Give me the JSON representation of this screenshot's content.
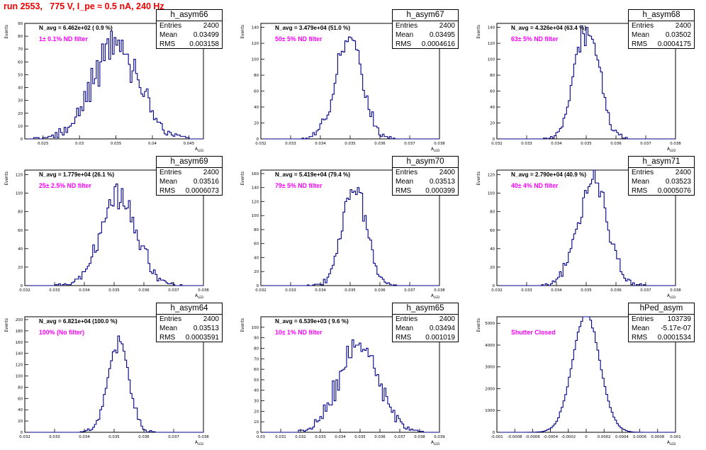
{
  "header": {
    "run_label": "run 2553,   775 V, I_pe ≈ 0.5 nA, 240 Hz"
  },
  "stat_labels": {
    "entries": "Entries",
    "mean": "Mean",
    "rms": "RMS"
  },
  "axis_titles": {
    "x": "A",
    "x_sub": "LED",
    "y": "Events"
  },
  "chart_data": [
    {
      "type": "bar",
      "name": "h_asym66",
      "n_avg_label": "N_avg = 6.462e+02 ( 0.9 %)",
      "filter_label": "1± 0.1% ND filter",
      "stats": {
        "entries": "2400",
        "mean": "0.03499",
        "rms": "0.003158"
      },
      "xlim": [
        0.0225,
        0.047
      ],
      "ylim": [
        0,
        90
      ],
      "xticks": [
        "0.025",
        "0.03",
        "0.035",
        "0.04",
        "0.045"
      ],
      "xtick_values": [
        0.025,
        0.03,
        0.035,
        0.04,
        0.045
      ],
      "yticks": [
        "0",
        "10",
        "20",
        "30",
        "40",
        "50",
        "60",
        "70",
        "80",
        "90"
      ],
      "ytick_values": [
        0,
        10,
        20,
        30,
        40,
        50,
        60,
        70,
        80,
        90
      ],
      "mean": 0.03499,
      "rms": 0.003158,
      "entries": 2400,
      "seed": 66
    },
    {
      "type": "bar",
      "name": "h_asym67",
      "n_avg_label": "N_avg = 3.479e+04 (51.0 %)",
      "filter_label": "50± 5% ND filter",
      "stats": {
        "entries": "2400",
        "mean": "0.03495",
        "rms": "0.0004616"
      },
      "xlim": [
        0.032,
        0.038
      ],
      "ylim": [
        0,
        145
      ],
      "xticks": [
        "0.032",
        "0.033",
        "0.034",
        "0.035",
        "0.036",
        "0.037",
        "0.038"
      ],
      "xtick_values": [
        0.032,
        0.033,
        0.034,
        0.035,
        0.036,
        0.037,
        0.038
      ],
      "yticks": [
        "0",
        "20",
        "40",
        "60",
        "80",
        "100",
        "120",
        "140"
      ],
      "ytick_values": [
        0,
        20,
        40,
        60,
        80,
        100,
        120,
        140
      ],
      "mean": 0.03495,
      "rms": 0.0004616,
      "entries": 2400,
      "seed": 67
    },
    {
      "type": "bar",
      "name": "h_asym68",
      "n_avg_label": "N_avg = 4.326e+04 (63.4 %)",
      "filter_label": "63± 5% ND filter",
      "stats": {
        "entries": "2400",
        "mean": "0.03502",
        "rms": "0.0004175"
      },
      "xlim": [
        0.032,
        0.038
      ],
      "ylim": [
        0,
        145
      ],
      "xticks": [
        "0.032",
        "0.033",
        "0.034",
        "0.035",
        "0.036",
        "0.037",
        "0.038"
      ],
      "xtick_values": [
        0.032,
        0.033,
        0.034,
        0.035,
        0.036,
        0.037,
        0.038
      ],
      "yticks": [
        "0",
        "20",
        "40",
        "60",
        "80",
        "100",
        "120",
        "140"
      ],
      "ytick_values": [
        0,
        20,
        40,
        60,
        80,
        100,
        120,
        140
      ],
      "mean": 0.03502,
      "rms": 0.0004175,
      "entries": 2400,
      "seed": 68
    },
    {
      "type": "bar",
      "name": "h_asym69",
      "n_avg_label": "N_avg = 1.779e+04 (26.1 %)",
      "filter_label": "25± 2.5% ND filter",
      "stats": {
        "entries": "2400",
        "mean": "0.03516",
        "rms": "0.0006073"
      },
      "xlim": [
        0.032,
        0.038
      ],
      "ylim": [
        0,
        125
      ],
      "xticks": [
        "0.032",
        "0.033",
        "0.034",
        "0.035",
        "0.036",
        "0.037",
        "0.038"
      ],
      "xtick_values": [
        0.032,
        0.033,
        0.034,
        0.035,
        0.036,
        0.037,
        0.038
      ],
      "yticks": [
        "0",
        "20",
        "40",
        "60",
        "80",
        "100",
        "120"
      ],
      "ytick_values": [
        0,
        20,
        40,
        60,
        80,
        100,
        120
      ],
      "mean": 0.03516,
      "rms": 0.0006073,
      "entries": 2400,
      "seed": 69
    },
    {
      "type": "bar",
      "name": "h_asym70",
      "n_avg_label": "N_avg = 5.419e+04 (79.4 %)",
      "filter_label": "79± 5% ND filter",
      "stats": {
        "entries": "2400",
        "mean": "0.03513",
        "rms": "0.000399"
      },
      "xlim": [
        0.032,
        0.038
      ],
      "ylim": [
        0,
        165
      ],
      "xticks": [
        "0.032",
        "0.033",
        "0.034",
        "0.035",
        "0.036",
        "0.037",
        "0.038"
      ],
      "xtick_values": [
        0.032,
        0.033,
        0.034,
        0.035,
        0.036,
        0.037,
        0.038
      ],
      "yticks": [
        "0",
        "20",
        "40",
        "60",
        "80",
        "100",
        "120",
        "140",
        "160"
      ],
      "ytick_values": [
        0,
        20,
        40,
        60,
        80,
        100,
        120,
        140,
        160
      ],
      "mean": 0.03513,
      "rms": 0.000399,
      "entries": 2400,
      "seed": 70
    },
    {
      "type": "bar",
      "name": "h_asym71",
      "n_avg_label": "N_avg = 2.790e+04 (40.9 %)",
      "filter_label": "40± 4% ND filter",
      "stats": {
        "entries": "2400",
        "mean": "0.03523",
        "rms": "0.0005076"
      },
      "xlim": [
        0.032,
        0.038
      ],
      "ylim": [
        0,
        125
      ],
      "xticks": [
        "0.032",
        "0.033",
        "0.034",
        "0.035",
        "0.036",
        "0.037",
        "0.038"
      ],
      "xtick_values": [
        0.032,
        0.033,
        0.034,
        0.035,
        0.036,
        0.037,
        0.038
      ],
      "yticks": [
        "0",
        "20",
        "40",
        "60",
        "80",
        "100",
        "120"
      ],
      "ytick_values": [
        0,
        20,
        40,
        60,
        80,
        100,
        120
      ],
      "mean": 0.03523,
      "rms": 0.0005076,
      "entries": 2400,
      "seed": 71
    },
    {
      "type": "bar",
      "name": "h_asym64",
      "n_avg_label": "N_avg = 6.821e+04 (100.0 %)",
      "filter_label": "100% (No filter)",
      "stats": {
        "entries": "2400",
        "mean": "0.03513",
        "rms": "0.0003591"
      },
      "xlim": [
        0.032,
        0.038
      ],
      "ylim": [
        0,
        205
      ],
      "xticks": [
        "0.032",
        "0.033",
        "0.034",
        "0.035",
        "0.036",
        "0.037",
        "0.038"
      ],
      "xtick_values": [
        0.032,
        0.033,
        0.034,
        0.035,
        0.036,
        0.037,
        0.038
      ],
      "yticks": [
        "0",
        "20",
        "40",
        "60",
        "80",
        "100",
        "120",
        "140",
        "160",
        "180",
        "200"
      ],
      "ytick_values": [
        0,
        20,
        40,
        60,
        80,
        100,
        120,
        140,
        160,
        180,
        200
      ],
      "mean": 0.03513,
      "rms": 0.0003591,
      "entries": 2400,
      "seed": 64
    },
    {
      "type": "bar",
      "name": "h_asym65",
      "n_avg_label": "N_avg = 6.539e+03 ( 9.6 %)",
      "filter_label": "10± 1% ND filter",
      "stats": {
        "entries": "2400",
        "mean": "0.03494",
        "rms": "0.001019"
      },
      "xlim": [
        0.03,
        0.039
      ],
      "ylim": [
        0,
        110
      ],
      "xticks": [
        "0.03",
        "0.031",
        "0.032",
        "0.033",
        "0.034",
        "0.035",
        "0.036",
        "0.037",
        "0.038",
        "0.039"
      ],
      "xtick_values": [
        0.03,
        0.031,
        0.032,
        0.033,
        0.034,
        0.035,
        0.036,
        0.037,
        0.038,
        0.039
      ],
      "yticks": [
        "0",
        "10",
        "20",
        "30",
        "40",
        "50",
        "60",
        "70",
        "80",
        "90",
        "100"
      ],
      "ytick_values": [
        0,
        10,
        20,
        30,
        40,
        50,
        60,
        70,
        80,
        90,
        100
      ],
      "mean": 0.03494,
      "rms": 0.001019,
      "entries": 2400,
      "seed": 65
    },
    {
      "type": "bar",
      "name": "hPed_asym",
      "n_avg_label": "",
      "filter_label": "Shutter Closed",
      "stats": {
        "entries": "103739",
        "mean": "-5.17e-07",
        "rms": "0.0001534"
      },
      "xlim": [
        -0.001,
        0.001
      ],
      "ylim": [
        0,
        5300
      ],
      "xticks": [
        "-0.001",
        "-0.0008",
        "-0.0006",
        "-0.0004",
        "-0.0002",
        "0",
        "0.0002",
        "0.0004",
        "0.0006",
        "0.0008",
        "0.001"
      ],
      "xtick_values": [
        -0.001,
        -0.0008,
        -0.0006,
        -0.0004,
        -0.0002,
        0,
        0.0002,
        0.0004,
        0.0006,
        0.0008,
        0.001
      ],
      "yticks": [
        "0",
        "1000",
        "2000",
        "3000",
        "4000",
        "5000"
      ],
      "ytick_values": [
        0,
        1000,
        2000,
        3000,
        4000,
        5000
      ],
      "mean": -5.17e-07,
      "rms": 0.0001534,
      "entries": 103739,
      "seed": 1
    }
  ]
}
